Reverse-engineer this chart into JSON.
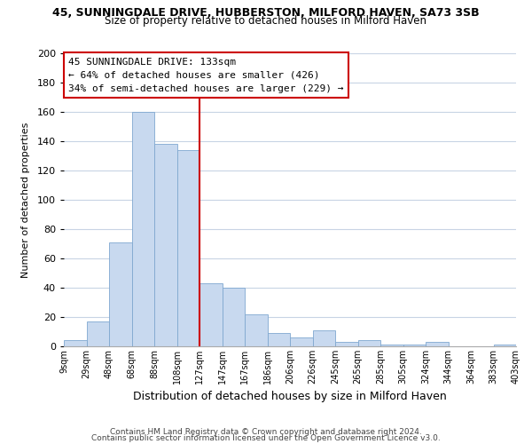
{
  "title": "45, SUNNINGDALE DRIVE, HUBBERSTON, MILFORD HAVEN, SA73 3SB",
  "subtitle": "Size of property relative to detached houses in Milford Haven",
  "xlabel": "Distribution of detached houses by size in Milford Haven",
  "ylabel": "Number of detached properties",
  "bar_labels": [
    "9sqm",
    "29sqm",
    "48sqm",
    "68sqm",
    "88sqm",
    "108sqm",
    "127sqm",
    "147sqm",
    "167sqm",
    "186sqm",
    "206sqm",
    "226sqm",
    "245sqm",
    "265sqm",
    "285sqm",
    "305sqm",
    "324sqm",
    "344sqm",
    "364sqm",
    "383sqm",
    "403sqm"
  ],
  "bar_values": [
    4,
    17,
    71,
    160,
    138,
    134,
    43,
    40,
    22,
    9,
    6,
    11,
    3,
    4,
    1,
    1,
    3,
    0,
    0,
    1
  ],
  "bar_color": "#c8d9ef",
  "bar_edge_color": "#7fa8d0",
  "vline_x": 6,
  "vline_color": "#cc0000",
  "ylim": [
    0,
    200
  ],
  "yticks": [
    0,
    20,
    40,
    60,
    80,
    100,
    120,
    140,
    160,
    180,
    200
  ],
  "annotation_title": "45 SUNNINGDALE DRIVE: 133sqm",
  "annotation_line1": "← 64% of detached houses are smaller (426)",
  "annotation_line2": "34% of semi-detached houses are larger (229) →",
  "annotation_box_color": "#ffffff",
  "annotation_box_edge": "#cc0000",
  "footer1": "Contains HM Land Registry data © Crown copyright and database right 2024.",
  "footer2": "Contains public sector information licensed under the Open Government Licence v3.0.",
  "bg_color": "#ffffff",
  "grid_color": "#c8d4e4"
}
